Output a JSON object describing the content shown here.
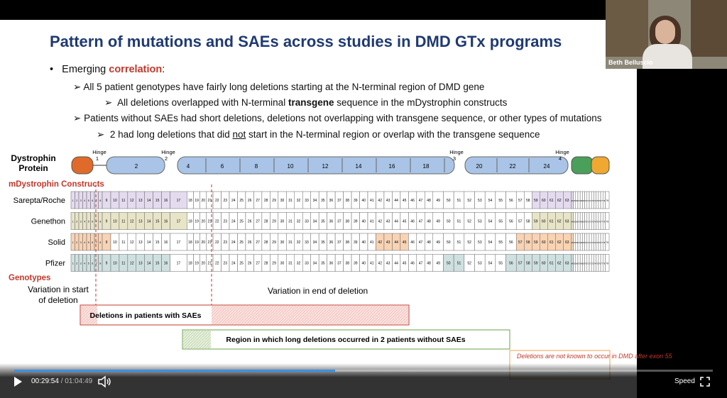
{
  "video": {
    "current_time": "00:29:54",
    "separator": "/",
    "duration": "01:04:49",
    "speed": "Speed"
  },
  "speaker": {
    "name": "Beth Belluscio"
  },
  "slide": {
    "title": "Pattern of mutations and SAEs across studies in DMD GTx programs",
    "bullets": [
      {
        "before": "Emerging ",
        "emphasis": "correlation",
        "after": ":"
      },
      {
        "text": "All 5 patient genotypes have fairly long deletions starting at the N-terminal region of DMD gene"
      },
      {
        "before": "All deletions overlapped with N-terminal ",
        "emphasis": "transgene",
        "after": " sequence in the mDystrophin constructs"
      },
      {
        "text": "Patients without SAEs had short deletions, deletions not overlapping with transgene sequence, or other types of mutations"
      },
      {
        "before": "2 had long deletions that did ",
        "emphasis": "not",
        "after": " start in the N-terminal region or overlap with the transgene sequence"
      }
    ],
    "protein_label": "Dystrophin Protein",
    "hinges": [
      {
        "label": "Hinge",
        "number": "1"
      },
      {
        "label": "Hinge",
        "number": "2"
      },
      {
        "label": "Hinge",
        "number": "3"
      },
      {
        "label": "Hinge",
        "number": "4"
      }
    ],
    "domains": [
      "2",
      "4",
      "6",
      "8",
      "10",
      "12",
      "14",
      "16",
      "18",
      "20",
      "22",
      "24"
    ],
    "constructs_title": "mDystrophin Constructs",
    "constructs": [
      "Sarepta/Roche",
      "Genethon",
      "Solid",
      "Pfizer"
    ],
    "exons": [
      "1",
      "2",
      "3",
      "4",
      "5",
      "6",
      "7",
      "8",
      "9",
      "10",
      "11",
      "12",
      "13",
      "14",
      "15",
      "16",
      "17",
      "18",
      "19",
      "20",
      "21",
      "22",
      "23",
      "24",
      "25",
      "26",
      "27",
      "28",
      "29",
      "30",
      "31",
      "32",
      "33",
      "34",
      "35",
      "36",
      "37",
      "38",
      "39",
      "40",
      "41",
      "42",
      "43",
      "44",
      "45",
      "46",
      "47",
      "48",
      "49",
      "50",
      "51",
      "52",
      "53",
      "54",
      "55",
      "56",
      "57",
      "58",
      "59",
      "60",
      "61",
      "62",
      "63",
      "64",
      "65",
      "66",
      "67",
      "68",
      "69",
      "70",
      "71",
      "72",
      "73",
      "74",
      "75",
      "76",
      "77",
      "78",
      "79"
    ],
    "genotypes_title": "Genotypes",
    "start_variation": "Variation in start of deletion",
    "end_variation": "Variation in end of deletion",
    "sae_box": "Deletions in patients with SAEs",
    "no_sae_box": "Region in which long deletions occurred in 2 patients without SAEs",
    "exon55_note": "Deletions are not known to occur in DMD after exon 55"
  }
}
